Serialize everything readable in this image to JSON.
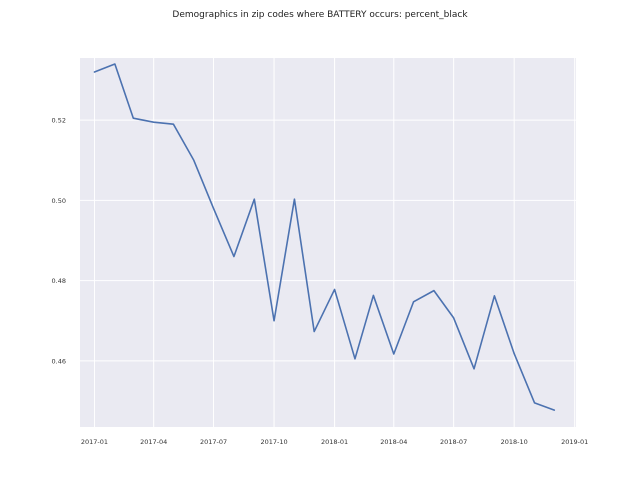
{
  "chart_data": {
    "type": "line",
    "title": "Demographics in zip codes where BATTERY occurs: percent_black",
    "xlabel": "",
    "ylabel": "",
    "x_tick_labels": [
      "2017-01",
      "2017-04",
      "2017-07",
      "2017-10",
      "2018-01",
      "2018-04",
      "2018-07",
      "2018-10",
      "2019-01"
    ],
    "y_tick_labels": [
      "0.46",
      "0.48",
      "0.50",
      "0.52"
    ],
    "grid": true,
    "legend": "none",
    "xlim": [
      "2016-12-10",
      "2019-01-03"
    ],
    "ylim": [
      0.4435,
      0.5355
    ],
    "x_tick_dates": [
      "2017-01-01",
      "2017-04-01",
      "2017-07-01",
      "2017-10-01",
      "2018-01-01",
      "2018-04-01",
      "2018-07-01",
      "2018-10-01",
      "2019-01-01"
    ],
    "y_ticks": [
      0.46,
      0.48,
      0.5,
      0.52
    ],
    "x": [
      "2017-01-01",
      "2017-02-01",
      "2017-03-01",
      "2017-04-01",
      "2017-05-01",
      "2017-06-01",
      "2017-07-01",
      "2017-08-01",
      "2017-09-01",
      "2017-10-01",
      "2017-11-01",
      "2017-12-01",
      "2018-01-01",
      "2018-02-01",
      "2018-03-01",
      "2018-04-01",
      "2018-05-01",
      "2018-06-01",
      "2018-07-01",
      "2018-08-01",
      "2018-09-01",
      "2018-10-01",
      "2018-11-01",
      "2018-12-01"
    ],
    "series": [
      {
        "color": "#4c72b0",
        "values": [
          0.532,
          0.534,
          0.5205,
          0.5195,
          0.519,
          0.51,
          0.498,
          0.486,
          0.5003,
          0.47,
          0.5003,
          0.4673,
          0.4778,
          0.4605,
          0.4763,
          0.4617,
          0.4747,
          0.4775,
          0.4707,
          0.458,
          0.4762,
          0.4618,
          0.4495,
          0.4477
        ]
      }
    ]
  },
  "colors": {
    "plot_background": "#eaeaf2",
    "grid": "#ffffff",
    "line": "#4c72b0"
  }
}
